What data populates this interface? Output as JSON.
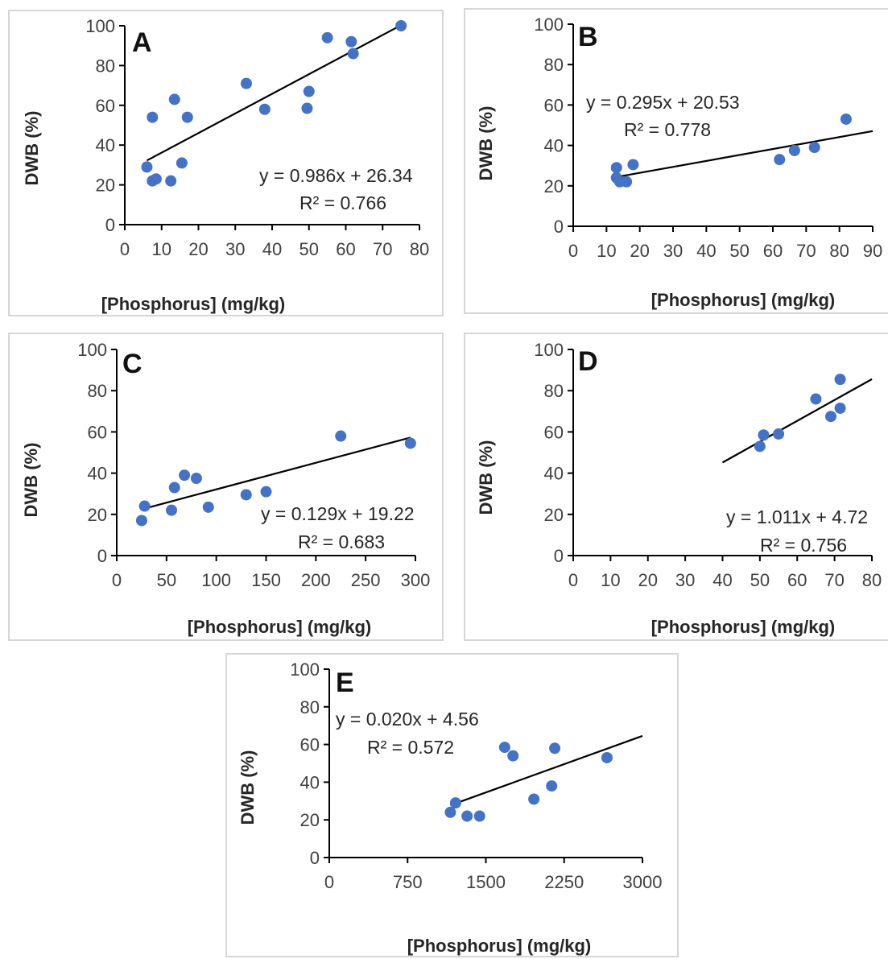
{
  "chart_data": [
    {
      "type": "scatter",
      "panel_label": "A",
      "xlabel": "[Phosphorus]  (mg/kg)",
      "ylabel": "DWB (%)",
      "xlim": [
        0,
        80
      ],
      "ylim": [
        0,
        100
      ],
      "xticks": [
        0,
        10,
        20,
        30,
        40,
        50,
        60,
        70,
        80
      ],
      "yticks": [
        0,
        20,
        40,
        60,
        80,
        100
      ],
      "points": [
        [
          6,
          29
        ],
        [
          7.5,
          54
        ],
        [
          7.5,
          22
        ],
        [
          8.5,
          23
        ],
        [
          12.5,
          22
        ],
        [
          13.5,
          63
        ],
        [
          15.5,
          31
        ],
        [
          17,
          54
        ],
        [
          33,
          71
        ],
        [
          38,
          58
        ],
        [
          49.5,
          58.5
        ],
        [
          50,
          67
        ],
        [
          55,
          94
        ],
        [
          61.5,
          92
        ],
        [
          62,
          86
        ],
        [
          75,
          100
        ]
      ],
      "trendline": {
        "slope": 0.986,
        "intercept": 26.34,
        "x_range": [
          6,
          75
        ]
      },
      "equation": "y = 0.986x + 26.34",
      "r2": "R² = 0.766",
      "color": "#4472c4"
    },
    {
      "type": "scatter",
      "panel_label": "B",
      "xlabel": "[Phosphorus]  (mg/kg)",
      "ylabel": "DWB (%)",
      "xlim": [
        0,
        90
      ],
      "ylim": [
        0,
        100
      ],
      "xticks": [
        0,
        10,
        20,
        30,
        40,
        50,
        60,
        70,
        80,
        90
      ],
      "yticks": [
        0,
        20,
        40,
        60,
        80,
        100
      ],
      "points": [
        [
          13,
          29
        ],
        [
          13,
          24
        ],
        [
          14,
          22
        ],
        [
          16,
          22
        ],
        [
          18,
          30.5
        ],
        [
          62,
          33
        ],
        [
          66.5,
          37.5
        ],
        [
          72.5,
          39
        ],
        [
          82,
          53
        ]
      ],
      "trendline": {
        "slope": 0.295,
        "intercept": 20.53,
        "x_range": [
          13,
          90
        ]
      },
      "equation": "y = 0.295x + 20.53",
      "r2": "R² = 0.778",
      "color": "#4472c4"
    },
    {
      "type": "scatter",
      "panel_label": "C",
      "xlabel": "[Phosphorus]  (mg/kg)",
      "ylabel": "DWB (%)",
      "xlim": [
        0,
        300
      ],
      "ylim": [
        0,
        100
      ],
      "xticks": [
        0,
        50,
        100,
        150,
        200,
        250,
        300
      ],
      "yticks": [
        0,
        20,
        40,
        60,
        80,
        100
      ],
      "points": [
        [
          25,
          17
        ],
        [
          28,
          24
        ],
        [
          55,
          22
        ],
        [
          58,
          33
        ],
        [
          68,
          39
        ],
        [
          80,
          37.5
        ],
        [
          92,
          23.5
        ],
        [
          130,
          29.5
        ],
        [
          150,
          31
        ],
        [
          225,
          58
        ],
        [
          295,
          54.5
        ]
      ],
      "trendline": {
        "slope": 0.129,
        "intercept": 19.22,
        "x_range": [
          25,
          295
        ]
      },
      "equation": "y = 0.129x + 19.22",
      "r2": "R² = 0.683",
      "color": "#4472c4"
    },
    {
      "type": "scatter",
      "panel_label": "D",
      "xlabel": "[Phosphorus]  (mg/kg)",
      "ylabel": "DWB (%)",
      "xlim": [
        0,
        80
      ],
      "ylim": [
        0,
        100
      ],
      "xticks": [
        0,
        10,
        20,
        30,
        40,
        50,
        60,
        70,
        80
      ],
      "yticks": [
        0,
        20,
        40,
        60,
        80,
        100
      ],
      "points": [
        [
          50,
          53
        ],
        [
          51,
          58.5
        ],
        [
          55,
          59
        ],
        [
          65,
          76
        ],
        [
          69,
          67.5
        ],
        [
          71.5,
          71.5
        ],
        [
          71.5,
          85.5
        ]
      ],
      "trendline": {
        "slope": 1.011,
        "intercept": 4.72,
        "x_range": [
          40,
          80
        ]
      },
      "equation": "y = 1.011x + 4.72",
      "r2": "R² = 0.756",
      "color": "#4472c4"
    },
    {
      "type": "scatter",
      "panel_label": "E",
      "xlabel": "[Phosphorus]  (mg/kg)",
      "ylabel": "DWB (%)",
      "xlim": [
        0,
        3000
      ],
      "ylim": [
        0,
        100
      ],
      "xticks": [
        0,
        750,
        1500,
        2250,
        3000
      ],
      "yticks": [
        0,
        20,
        40,
        60,
        80,
        100
      ],
      "points": [
        [
          1160,
          24
        ],
        [
          1210,
          29
        ],
        [
          1320,
          22
        ],
        [
          1440,
          22
        ],
        [
          1680,
          58.5
        ],
        [
          1760,
          54
        ],
        [
          1960,
          31
        ],
        [
          2130,
          38
        ],
        [
          2160,
          58
        ],
        [
          2660,
          53
        ]
      ],
      "trendline": {
        "slope": 0.02,
        "intercept": 4.56,
        "x_range": [
          1160,
          3000
        ]
      },
      "equation": "y = 0.020x + 4.56",
      "r2": "R² = 0.572",
      "color": "#4472c4"
    }
  ]
}
